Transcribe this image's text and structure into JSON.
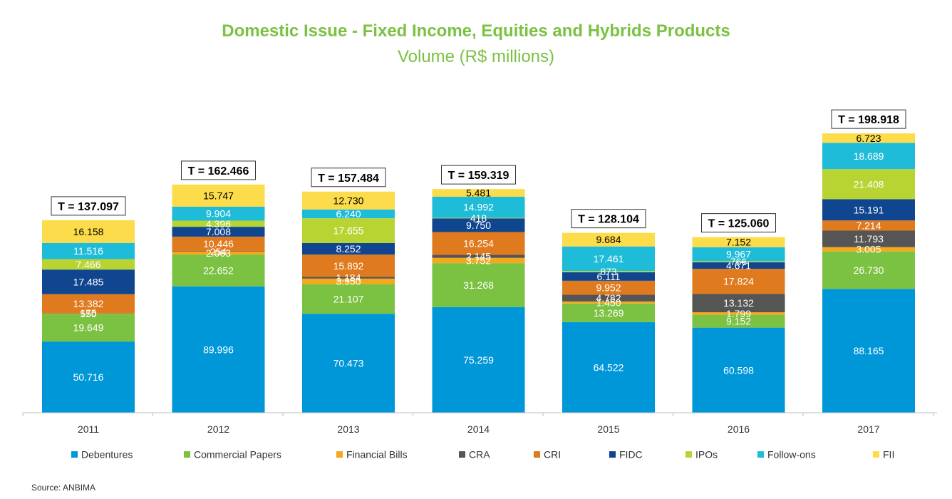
{
  "title": "Domestic Issue - Fixed Income, Equities and Hybrids Products",
  "subtitle": "Volume (R$ millions)",
  "source": "Source: ANBIMA",
  "chart_data": {
    "type": "bar",
    "stacked": true,
    "categories": [
      "2011",
      "2012",
      "2013",
      "2014",
      "2015",
      "2016",
      "2017"
    ],
    "totals": [
      "T = 137.097",
      "T = 162.466",
      "T = 157.484",
      "T = 159.319",
      "T = 128.104",
      "T = 125.060",
      "T = 198.918"
    ],
    "series": [
      {
        "name": "Debentures",
        "color": "#0097d9",
        "label_color": "#ffffff",
        "values": [
          50716,
          89996,
          70473,
          75259,
          64522,
          60598,
          88165
        ],
        "labels": [
          "50.716",
          "89.996",
          "70.473",
          "75.259",
          "64.522",
          "60.598",
          "88.165"
        ]
      },
      {
        "name": "Commercial Papers",
        "color": "#7bc142",
        "label_color": "#ffffff",
        "values": [
          19649,
          22652,
          21107,
          31268,
          13269,
          9152,
          26730
        ],
        "labels": [
          "19.649",
          "22.652",
          "21.107",
          "31.268",
          "13.269",
          "9.152",
          "26.730"
        ]
      },
      {
        "name": "Financial Bills",
        "color": "#f6a81c",
        "label_color": "#ffffff",
        "values": [
          550,
          2063,
          3950,
          3752,
          1450,
          1799,
          3005
        ],
        "labels": [
          "550",
          "2.063",
          "3.950",
          "3.752",
          "1.450",
          "1.799",
          "3.005"
        ]
      },
      {
        "name": "CRA",
        "color": "#555555",
        "label_color": "#ffffff",
        "values": [
          175,
          254,
          1184,
          2145,
          4782,
          13132,
          11793
        ],
        "labels": [
          "175",
          "254",
          "1.184",
          "2.145",
          "4.782",
          "13.132",
          "11.793"
        ]
      },
      {
        "name": "CRI",
        "color": "#e07a1f",
        "label_color": "#ffffff",
        "values": [
          13382,
          10446,
          15892,
          16254,
          9952,
          17824,
          7214
        ],
        "labels": [
          "13.382",
          "10.446",
          "15.892",
          "16.254",
          "9.952",
          "17.824",
          "7.214"
        ]
      },
      {
        "name": "FIDC",
        "color": "#10468f",
        "label_color": "#ffffff",
        "values": [
          17485,
          7008,
          8252,
          9750,
          6111,
          4671,
          15191
        ],
        "labels": [
          "17.485",
          "7.008",
          "8.252",
          "9.750",
          "6.111",
          "4.671",
          "15.191"
        ]
      },
      {
        "name": "IPOs",
        "color": "#b8d432",
        "label_color": "#ffffff",
        "values": [
          7466,
          4396,
          17655,
          418,
          873,
          766,
          21408
        ],
        "labels": [
          "7.466",
          "4.396",
          "17.655",
          "418",
          "873",
          "766",
          "21.408"
        ]
      },
      {
        "name": "Follow-ons",
        "color": "#1ebcd8",
        "label_color": "#ffffff",
        "values": [
          11516,
          9904,
          6240,
          14992,
          17461,
          9967,
          18689
        ],
        "labels": [
          "11.516",
          "9.904",
          "6.240",
          "14.992",
          "17.461",
          "9.967",
          "18.689"
        ]
      },
      {
        "name": "FII",
        "color": "#fcdc4a",
        "label_color": "#000000",
        "values": [
          16158,
          15747,
          12730,
          5481,
          9684,
          7152,
          6723
        ],
        "labels": [
          "16.158",
          "15.747",
          "12.730",
          "5.481",
          "9.684",
          "7.152",
          "6.723"
        ]
      }
    ],
    "ylim": [
      0,
      200000
    ],
    "grid": false,
    "legend_position": "bottom"
  }
}
